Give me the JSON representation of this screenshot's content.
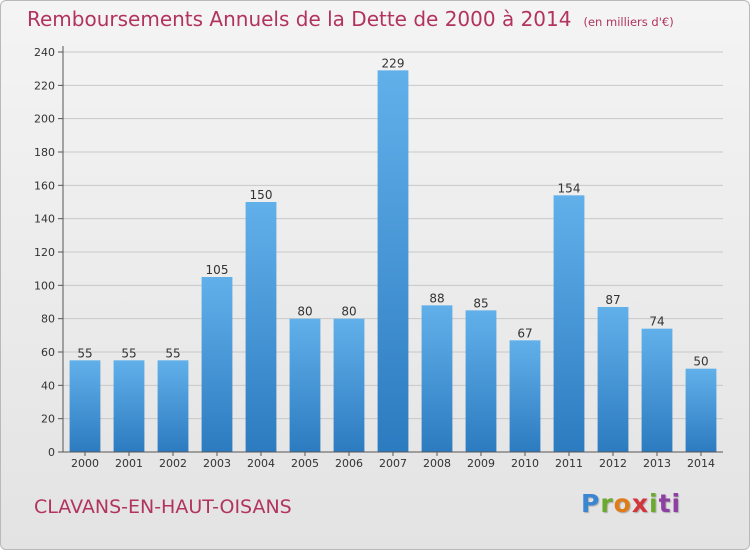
{
  "title": "Remboursements Annuels de la Dette de 2000 à 2014",
  "subtitle": "(en milliers d'€)",
  "town": "CLAVANS-EN-HAUT-OISANS",
  "logo": {
    "letters": [
      "P",
      "r",
      "o",
      "x",
      "i",
      "t",
      "i"
    ]
  },
  "colors": {
    "title": "#b2335e",
    "bar_top": "#62b0ea",
    "bar_bottom": "#2c7bc0",
    "grid": "#c8c8c8",
    "axis": "#555555"
  },
  "chart_data": {
    "type": "bar",
    "categories": [
      "2000",
      "2001",
      "2002",
      "2003",
      "2004",
      "2005",
      "2006",
      "2007",
      "2008",
      "2009",
      "2010",
      "2011",
      "2012",
      "2013",
      "2014"
    ],
    "values": [
      55,
      55,
      55,
      105,
      150,
      80,
      80,
      229,
      88,
      85,
      67,
      154,
      87,
      74,
      50
    ],
    "ylim": [
      0,
      240
    ],
    "yticks": [
      0,
      20,
      40,
      60,
      80,
      100,
      120,
      140,
      160,
      180,
      200,
      220,
      240
    ],
    "grid": true,
    "data_labels": true,
    "xlabel": "",
    "ylabel": ""
  }
}
